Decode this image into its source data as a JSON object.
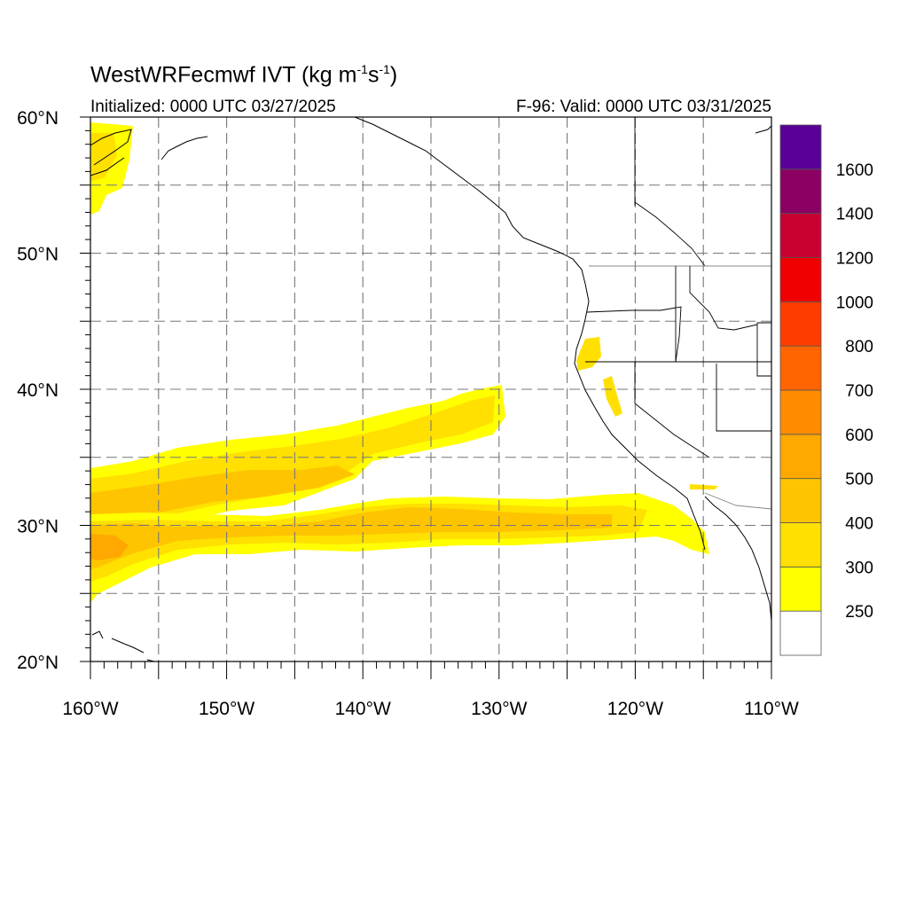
{
  "title": {
    "text": "WestWRFecmwf IVT (kg m",
    "sup1": "-1",
    "mid": "s",
    "sup2": "-1",
    "end": ")"
  },
  "initialized": "Initialized: 0000 UTC 03/27/2025",
  "valid": "F-96: Valid: 0000 UTC 03/31/2025",
  "map": {
    "lat_labels": [
      "60°N",
      "50°N",
      "40°N",
      "30°N",
      "20°N"
    ],
    "lon_labels": [
      "160°W",
      "150°W",
      "140°W",
      "130°W",
      "120°W",
      "110°W"
    ],
    "lat_range": [
      20,
      60
    ],
    "lon_range": [
      -160,
      -110
    ],
    "grid_dashed": true
  },
  "colorbar": {
    "labels": [
      "250",
      "300",
      "400",
      "500",
      "600",
      "700",
      "800",
      "1000",
      "1200",
      "1400",
      "1600"
    ],
    "colors": [
      "#ffffff",
      "#ffff00",
      "#ffe000",
      "#ffc400",
      "#ffa800",
      "#ff8c00",
      "#ff6400",
      "#ff3c00",
      "#f00000",
      "#c80032",
      "#8c0064",
      "#5a0096"
    ]
  },
  "chart_data": {
    "type": "heatmap",
    "variable": "IVT (kg m-1 s-1)",
    "x_range": [
      -160,
      -110
    ],
    "y_range": [
      20,
      60
    ],
    "levels": [
      250,
      300,
      400,
      500,
      600,
      700,
      800,
      1000,
      1200,
      1400,
      1600
    ]
  }
}
